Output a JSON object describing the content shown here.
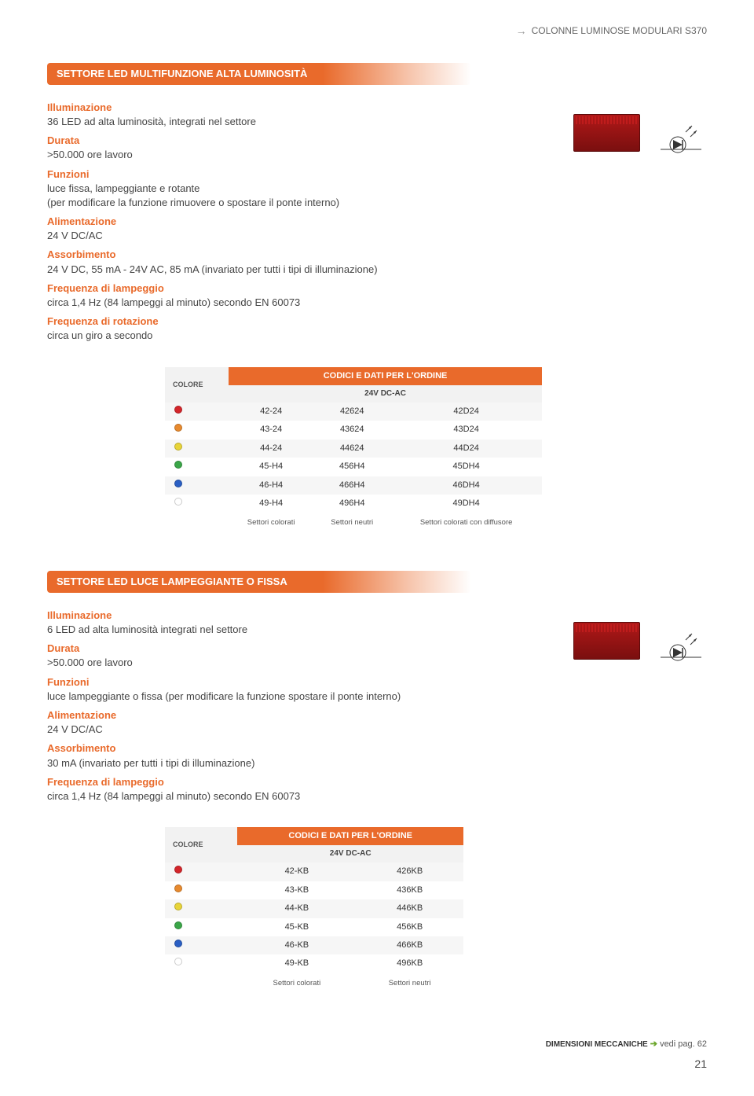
{
  "header": {
    "text": "COLONNE LUMINOSE MODULARI S370"
  },
  "section1": {
    "title": "SETTORE LED MULTIFUNZIONE ALTA LUMINOSITÀ",
    "specs": [
      {
        "label": "Illuminazione",
        "text": "36 LED ad alta luminosità, integrati nel settore"
      },
      {
        "label": "Durata",
        "text": ">50.000 ore lavoro"
      },
      {
        "label": "Funzioni",
        "text": "luce fissa, lampeggiante e rotante\n(per modificare la funzione rimuovere o spostare il ponte interno)"
      },
      {
        "label": "Alimentazione",
        "text": "24 V DC/AC"
      },
      {
        "label": "Assorbimento",
        "text": "24 V DC, 55 mA - 24V AC, 85 mA (invariato per tutti i tipi di illuminazione)"
      },
      {
        "label": "Frequenza di lampeggio",
        "text": "circa 1,4 Hz (84 lampeggi al minuto) secondo EN 60073"
      },
      {
        "label": "Frequenza di rotazione",
        "text": "circa un giro a secondo"
      }
    ],
    "table": {
      "colore_label": "COLORE",
      "header": "CODICI E DATI PER L'ORDINE",
      "subheader": "24V DC-AC",
      "colspan": 3,
      "rows": [
        {
          "color": "#d4252a",
          "cells": [
            "42-24",
            "42624",
            "42D24"
          ]
        },
        {
          "color": "#e88a2e",
          "cells": [
            "43-24",
            "43624",
            "43D24"
          ]
        },
        {
          "color": "#e8d438",
          "cells": [
            "44-24",
            "44624",
            "44D24"
          ]
        },
        {
          "color": "#3aa648",
          "cells": [
            "45-H4",
            "456H4",
            "45DH4"
          ]
        },
        {
          "color": "#2a5fc4",
          "cells": [
            "46-H4",
            "466H4",
            "46DH4"
          ]
        },
        {
          "color": "#ffffff",
          "cells": [
            "49-H4",
            "496H4",
            "49DH4"
          ]
        }
      ],
      "footers": [
        "Settori colorati",
        "Settori neutri",
        "Settori colorati con diffusore"
      ]
    }
  },
  "section2": {
    "title": "SETTORE LED LUCE LAMPEGGIANTE O FISSA",
    "specs": [
      {
        "label": "Illuminazione",
        "text": "6 LED ad alta luminosità integrati nel settore"
      },
      {
        "label": "Durata",
        "text": ">50.000 ore lavoro"
      },
      {
        "label": "Funzioni",
        "text": "luce lampeggiante o fissa (per modificare la funzione spostare il ponte interno)"
      },
      {
        "label": "Alimentazione",
        "text": "24 V DC/AC"
      },
      {
        "label": "Assorbimento",
        "text": "30 mA (invariato per tutti i tipi di illuminazione)"
      },
      {
        "label": "Frequenza di lampeggio",
        "text": "circa 1,4 Hz (84 lampeggi al minuto) secondo EN 60073"
      }
    ],
    "table": {
      "colore_label": "COLORE",
      "header": "CODICI E DATI PER L'ORDINE",
      "subheader": "24V DC-AC",
      "colspan": 2,
      "rows": [
        {
          "color": "#d4252a",
          "cells": [
            "42-KB",
            "426KB"
          ]
        },
        {
          "color": "#e88a2e",
          "cells": [
            "43-KB",
            "436KB"
          ]
        },
        {
          "color": "#e8d438",
          "cells": [
            "44-KB",
            "446KB"
          ]
        },
        {
          "color": "#3aa648",
          "cells": [
            "45-KB",
            "456KB"
          ]
        },
        {
          "color": "#2a5fc4",
          "cells": [
            "46-KB",
            "466KB"
          ]
        },
        {
          "color": "#ffffff",
          "cells": [
            "49-KB",
            "496KB"
          ]
        }
      ],
      "footers": [
        "Settori colorati",
        "Settori neutri"
      ]
    }
  },
  "footer": {
    "dim_label": "DIMENSIONI MECCANICHE",
    "ref": "vedi pag. 62",
    "page": "21"
  }
}
